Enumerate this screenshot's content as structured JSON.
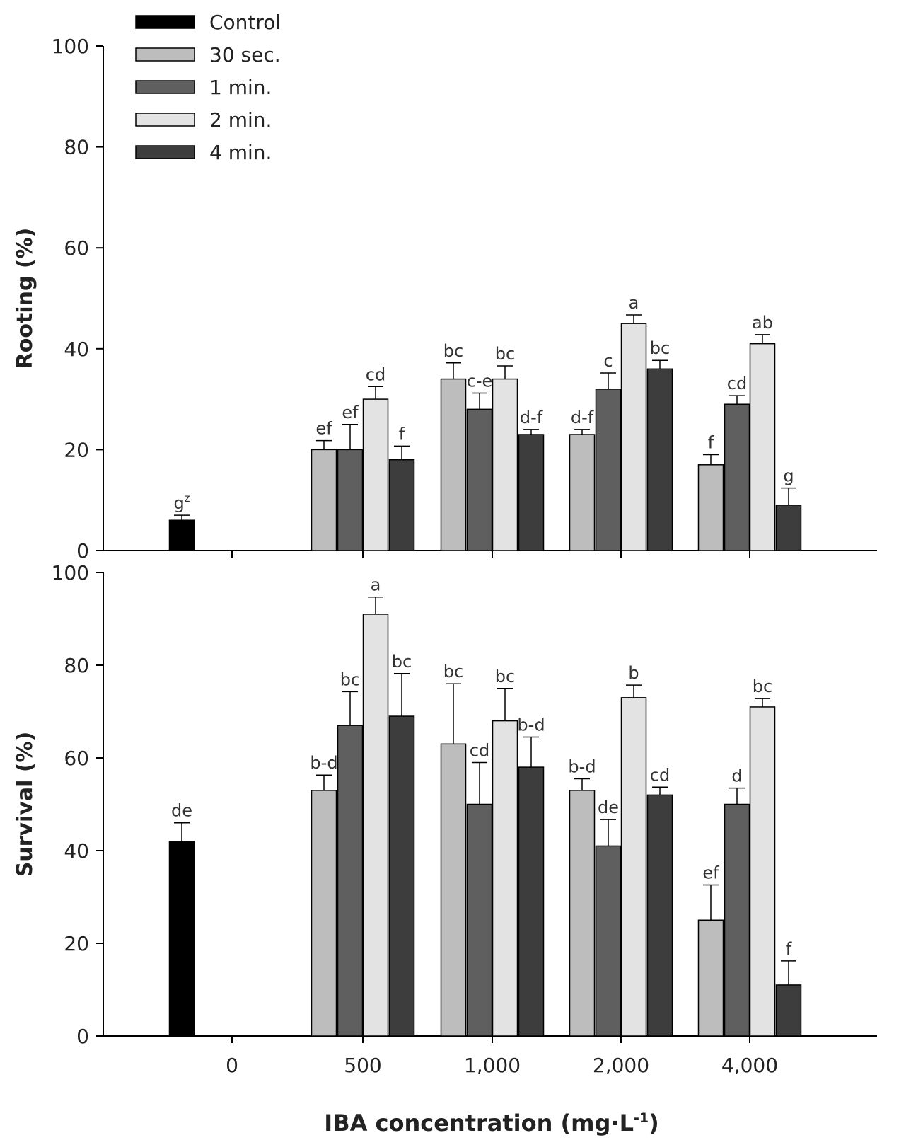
{
  "colors": {
    "Control": "#000000",
    "30 sec.": "#bdbdbd",
    "1 min.": "#5f5f5f",
    "2 min.": "#e3e3e3",
    "4 min.": "#3d3d3d",
    "axis": "#000000",
    "text": "#222222"
  },
  "chart_data": [
    {
      "type": "bar",
      "ylabel": "Rooting (%)",
      "ylim": [
        0,
        100
      ],
      "yticks": [
        0,
        20,
        40,
        60,
        80,
        100
      ],
      "yticks_display": [
        "0",
        "20",
        "40",
        "60",
        "80",
        "100"
      ],
      "categories": [
        "0",
        "500",
        "1,000",
        "2,000",
        "4,000"
      ],
      "legend": {
        "placement": "top-left",
        "entries": [
          "Control",
          "30 sec.",
          "1 min.",
          "2 min.",
          "4 min."
        ]
      },
      "bars": [
        {
          "series": "Control",
          "category": "0",
          "value": 6,
          "error": 1,
          "letter": "g",
          "superscript": "z"
        },
        {
          "series": "30 sec.",
          "category": "500",
          "value": 20,
          "error": 1.8,
          "letter": "ef"
        },
        {
          "series": "1 min.",
          "category": "500",
          "value": 20,
          "error": 5,
          "letter": "ef"
        },
        {
          "series": "2 min.",
          "category": "500",
          "value": 30,
          "error": 2.5,
          "letter": "cd"
        },
        {
          "series": "4 min.",
          "category": "500",
          "value": 18,
          "error": 2.7,
          "letter": "f"
        },
        {
          "series": "30 sec.",
          "category": "1,000",
          "value": 34,
          "error": 3.2,
          "letter": "bc"
        },
        {
          "series": "1 min.",
          "category": "1,000",
          "value": 28,
          "error": 3.2,
          "letter": "c-e"
        },
        {
          "series": "2 min.",
          "category": "1,000",
          "value": 34,
          "error": 2.6,
          "letter": "bc"
        },
        {
          "series": "4 min.",
          "category": "1,000",
          "value": 23,
          "error": 1,
          "letter": "d-f"
        },
        {
          "series": "30 sec.",
          "category": "2,000",
          "value": 23,
          "error": 1,
          "letter": "d-f"
        },
        {
          "series": "1 min.",
          "category": "2,000",
          "value": 32,
          "error": 3.2,
          "letter": "c"
        },
        {
          "series": "2 min.",
          "category": "2,000",
          "value": 45,
          "error": 1.7,
          "letter": "a"
        },
        {
          "series": "4 min.",
          "category": "2,000",
          "value": 36,
          "error": 1.7,
          "letter": "bc"
        },
        {
          "series": "30 sec.",
          "category": "4,000",
          "value": 17,
          "error": 2,
          "letter": "f"
        },
        {
          "series": "1 min.",
          "category": "4,000",
          "value": 29,
          "error": 1.7,
          "letter": "cd"
        },
        {
          "series": "2 min.",
          "category": "4,000",
          "value": 41,
          "error": 1.8,
          "letter": "ab"
        },
        {
          "series": "4 min.",
          "category": "4,000",
          "value": 9,
          "error": 3.4,
          "letter": "g"
        }
      ]
    },
    {
      "type": "bar",
      "ylabel": "Survival (%)",
      "xlabel": "IBA concentration (mg·L",
      "xlabel_superscript": "-1",
      "xlabel_suffix": ")",
      "ylim": [
        0,
        100
      ],
      "yticks": [
        0,
        20,
        40,
        60,
        80,
        100
      ],
      "yticks_display": [
        "0",
        "20",
        "40",
        "60",
        "80",
        "100"
      ],
      "categories": [
        "0",
        "500",
        "1,000",
        "2,000",
        "4,000"
      ],
      "bars": [
        {
          "series": "Control",
          "category": "0",
          "value": 42,
          "error": 4,
          "letter": "de"
        },
        {
          "series": "30 sec.",
          "category": "500",
          "value": 53,
          "error": 3.3,
          "letter": "b-d"
        },
        {
          "series": "1 min.",
          "category": "500",
          "value": 67,
          "error": 7.3,
          "letter": "bc"
        },
        {
          "series": "2 min.",
          "category": "500",
          "value": 91,
          "error": 3.7,
          "letter": "a"
        },
        {
          "series": "4 min.",
          "category": "500",
          "value": 69,
          "error": 9.2,
          "letter": "bc"
        },
        {
          "series": "30 sec.",
          "category": "1,000",
          "value": 63,
          "error": 13,
          "letter": "bc"
        },
        {
          "series": "1 min.",
          "category": "1,000",
          "value": 50,
          "error": 9,
          "letter": "cd"
        },
        {
          "series": "2 min.",
          "category": "1,000",
          "value": 68,
          "error": 7,
          "letter": "bc"
        },
        {
          "series": "4 min.",
          "category": "1,000",
          "value": 58,
          "error": 6.5,
          "letter": "b-d"
        },
        {
          "series": "30 sec.",
          "category": "2,000",
          "value": 53,
          "error": 2.5,
          "letter": "b-d"
        },
        {
          "series": "1 min.",
          "category": "2,000",
          "value": 41,
          "error": 5.7,
          "letter": "de"
        },
        {
          "series": "2 min.",
          "category": "2,000",
          "value": 73,
          "error": 2.7,
          "letter": "b"
        },
        {
          "series": "4 min.",
          "category": "2,000",
          "value": 52,
          "error": 1.7,
          "letter": "cd"
        },
        {
          "series": "30 sec.",
          "category": "4,000",
          "value": 25,
          "error": 7.6,
          "letter": "ef"
        },
        {
          "series": "1 min.",
          "category": "4,000",
          "value": 50,
          "error": 3.5,
          "letter": "d"
        },
        {
          "series": "2 min.",
          "category": "4,000",
          "value": 71,
          "error": 1.8,
          "letter": "bc"
        },
        {
          "series": "4 min.",
          "category": "4,000",
          "value": 11,
          "error": 5.2,
          "letter": "f"
        }
      ]
    }
  ]
}
